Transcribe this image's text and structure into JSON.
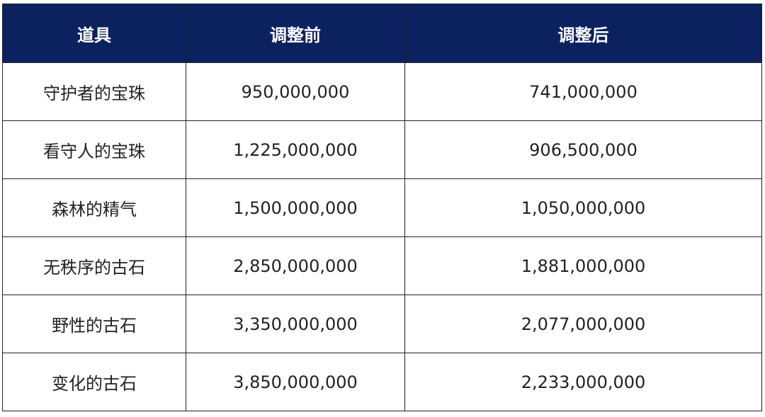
{
  "table": {
    "header": [
      "道具",
      "调整前",
      "调整后"
    ],
    "rows": [
      [
        "守护者的宝珠",
        "950,000,000",
        "741,000,000"
      ],
      [
        "看守人的宝珠",
        "1,225,000,000",
        "906,500,000"
      ],
      [
        "森林的精气",
        "1,500,000,000",
        "1,050,000,000"
      ],
      [
        "无秩序的古石",
        "2,850,000,000",
        "1,881,000,000"
      ],
      [
        "野性的古石",
        "3,350,000,000",
        "2,077,000,000"
      ],
      [
        "变化的古石",
        "3,850,000,000",
        "2,233,000,000"
      ]
    ]
  }
}
